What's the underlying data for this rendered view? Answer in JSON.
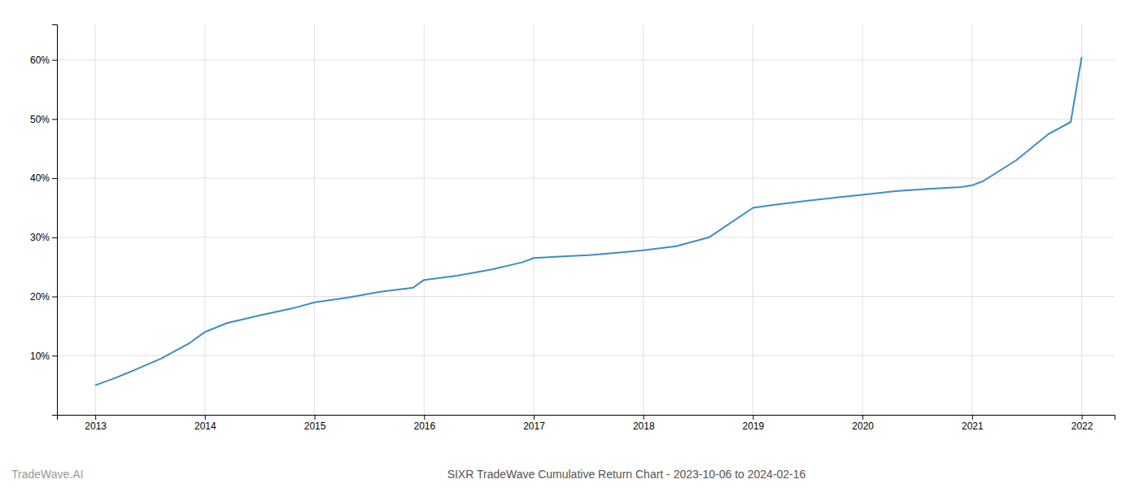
{
  "chart_data": {
    "type": "line",
    "title": "SIXR TradeWave Cumulative Return Chart - 2023-10-06 to 2024-02-16",
    "annotations": [
      "TradeWave.AI"
    ],
    "x": [
      2013.0,
      2013.15,
      2013.35,
      2013.6,
      2013.85,
      2014.0,
      2014.2,
      2014.5,
      2014.8,
      2015.0,
      2015.3,
      2015.6,
      2015.9,
      2016.0,
      2016.3,
      2016.6,
      2016.9,
      2017.0,
      2017.3,
      2017.5,
      2017.7,
      2018.0,
      2018.3,
      2018.6,
      2019.0,
      2019.2,
      2019.5,
      2019.8,
      2020.0,
      2020.3,
      2020.6,
      2020.9,
      2021.0,
      2021.1,
      2021.4,
      2021.7,
      2021.9,
      2022.0
    ],
    "values": [
      5.0,
      6.0,
      7.5,
      9.5,
      12.0,
      14.0,
      15.5,
      16.8,
      18.0,
      19.0,
      19.8,
      20.8,
      21.5,
      22.8,
      23.5,
      24.5,
      25.8,
      26.5,
      26.8,
      27.0,
      27.3,
      27.8,
      28.5,
      30.0,
      35.0,
      35.5,
      36.2,
      36.8,
      37.2,
      37.8,
      38.2,
      38.5,
      38.8,
      39.5,
      43.0,
      47.5,
      49.5,
      60.5
    ],
    "color": "#3a8fc1",
    "xlim": [
      2012.65,
      2022.3
    ],
    "ylim": [
      0,
      66
    ],
    "xticks": [
      2013,
      2014,
      2015,
      2016,
      2017,
      2018,
      2019,
      2020,
      2021,
      2022
    ],
    "yticks": [
      {
        "value": 10,
        "label": "10%"
      },
      {
        "value": 20,
        "label": "20%"
      },
      {
        "value": 30,
        "label": "30%"
      },
      {
        "value": 40,
        "label": "40%"
      },
      {
        "value": 50,
        "label": "50%"
      },
      {
        "value": 60,
        "label": "60%"
      }
    ],
    "grid": true
  }
}
